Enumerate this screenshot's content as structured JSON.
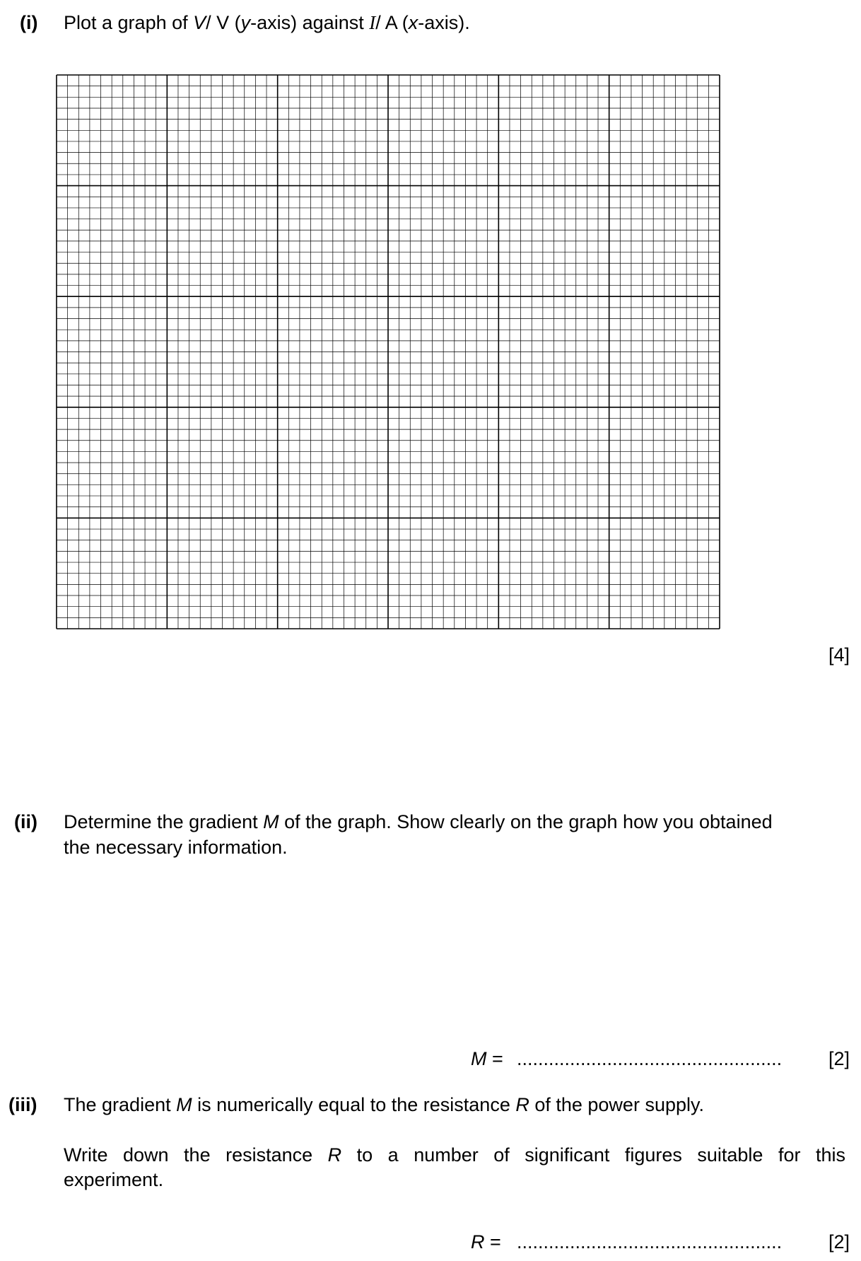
{
  "part_i": {
    "number": "(i)",
    "text_a": "Plot a graph of ",
    "v_symbol": "V",
    "text_b": "/ V (",
    "y_letter": "y",
    "text_c": "-axis) against ",
    "i_symbol": "I",
    "text_d": "/ A (",
    "x_letter": "x",
    "text_e": "-axis).",
    "marks": "[4]"
  },
  "part_ii": {
    "number": "(ii)",
    "line1_a": "Determine the gradient ",
    "m_symbol": "M",
    "line1_b": " of the graph. Show clearly on the graph how you obtained",
    "line2": "the necessary information.",
    "answer_symbol": "M",
    "answer_equals": " =",
    "answer_dots": "..................................................",
    "marks": "[2]"
  },
  "part_iii": {
    "number": "(iii)",
    "line1_a": "The gradient ",
    "m_symbol": "M",
    "line1_b": " is numerically equal to the resistance ",
    "r_symbol": "R",
    "line1_c": " of the power supply.",
    "line2_a": "Write down the resistance ",
    "r_symbol2": "R",
    "line2_b": " to a number of significant figures suitable for this",
    "line3": "experiment.",
    "answer_symbol": "R",
    "answer_equals": " =",
    "answer_dots": "..................................................",
    "marks": "[2]"
  },
  "graph_paper": {
    "major_columns": 6,
    "major_rows": 5,
    "minor_per_major": 10,
    "line_color": "#000000"
  }
}
